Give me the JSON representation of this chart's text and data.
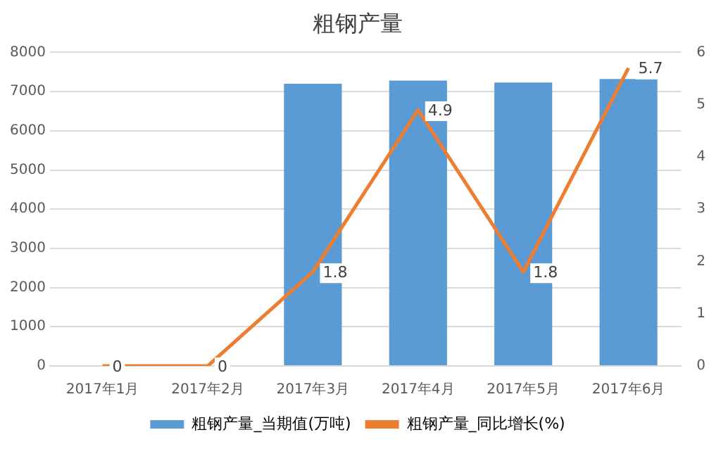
{
  "chart_data": {
    "type": "bar",
    "title": "粗钢产量",
    "categories": [
      "2017年1月",
      "2017年2月",
      "2017年3月",
      "2017年4月",
      "2017年5月",
      "2017年6月"
    ],
    "series": [
      {
        "name": "粗钢产量_当期值(万吨)",
        "color": "#5b9bd5",
        "values": [
          null,
          null,
          7200,
          7280,
          7230,
          7320
        ]
      },
      {
        "name": "粗钢产量_同比增长(%)",
        "type": "line",
        "axis": "y2",
        "color": "#ed7d31",
        "values": [
          0,
          0,
          1.8,
          4.9,
          1.8,
          5.7
        ],
        "value_labels": [
          "0",
          "0",
          "1.8",
          "4.9",
          "1.8",
          "5.7"
        ]
      }
    ],
    "ylim": [
      0,
      8000
    ],
    "yticks": [
      0,
      1000,
      2000,
      3000,
      4000,
      5000,
      6000,
      7000,
      8000
    ],
    "y2lim": [
      0,
      6
    ],
    "y2ticks": [
      0,
      1,
      2,
      3,
      4,
      5,
      6
    ],
    "grid": "y",
    "legend": "bottom",
    "marker": "none"
  }
}
